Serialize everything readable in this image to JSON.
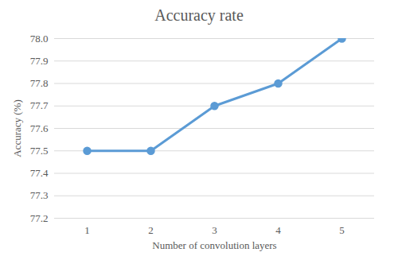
{
  "chart_data": {
    "type": "line",
    "title": "Accuracy rate",
    "x_label": "Number of convolution layers",
    "y_label": "Accuracy (%)",
    "categories": [
      "1",
      "2",
      "3",
      "4",
      "5"
    ],
    "values": [
      77.5,
      77.5,
      77.7,
      77.8,
      78.0
    ],
    "color": "#5b9bd5",
    "marker": "circle",
    "line_style": "solid",
    "ylim": [
      77.2,
      78.0
    ],
    "yticks": [
      77.2,
      77.3,
      77.4,
      77.5,
      77.6,
      77.7,
      77.8,
      77.9,
      {
        "value": 78,
        "label": "78.0"
      }
    ],
    "grid": true
  }
}
